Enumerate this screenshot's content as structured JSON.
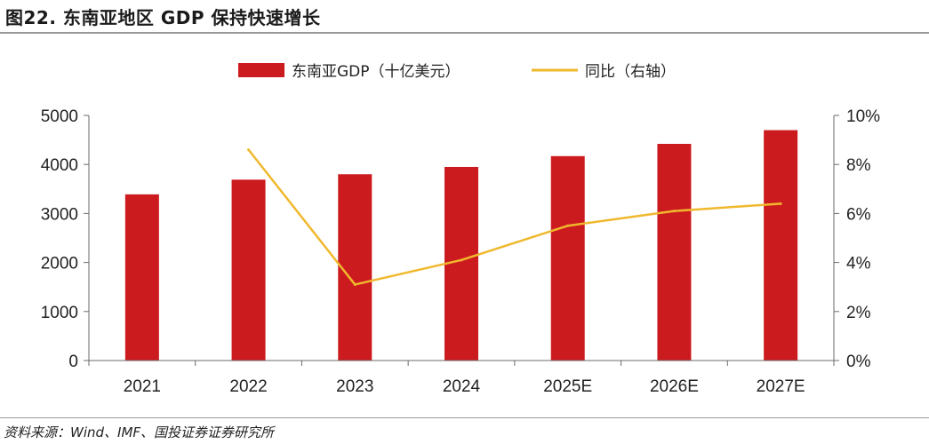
{
  "figure": {
    "title": "图22. 东南亚地区 GDP 保持快速增长",
    "source": "资料来源：Wind、IMF、国投证券证券研究所"
  },
  "chart_data": {
    "type": "bar",
    "categories": [
      "2021",
      "2022",
      "2023",
      "2024",
      "2025E",
      "2026E",
      "2027E"
    ],
    "series": [
      {
        "name": "东南亚GDP（十亿美元）",
        "type": "bar",
        "axis": "left",
        "color": "#cc1b1f",
        "values": [
          3390,
          3690,
          3800,
          3950,
          4170,
          4420,
          4700
        ]
      },
      {
        "name": "同比（右轴）",
        "type": "line",
        "axis": "right",
        "color": "#f0b82d",
        "values": [
          null,
          8.6,
          3.1,
          4.1,
          5.5,
          6.1,
          6.4
        ]
      }
    ],
    "left_axis": {
      "ylim": [
        0,
        5000
      ],
      "ticks": [
        "0",
        "1000",
        "2000",
        "3000",
        "4000",
        "5000"
      ]
    },
    "right_axis": {
      "ylim": [
        0,
        10
      ],
      "ticks": [
        "0%",
        "2%",
        "4%",
        "6%",
        "8%",
        "10%"
      ]
    },
    "legend": "top-center",
    "grid": false
  }
}
